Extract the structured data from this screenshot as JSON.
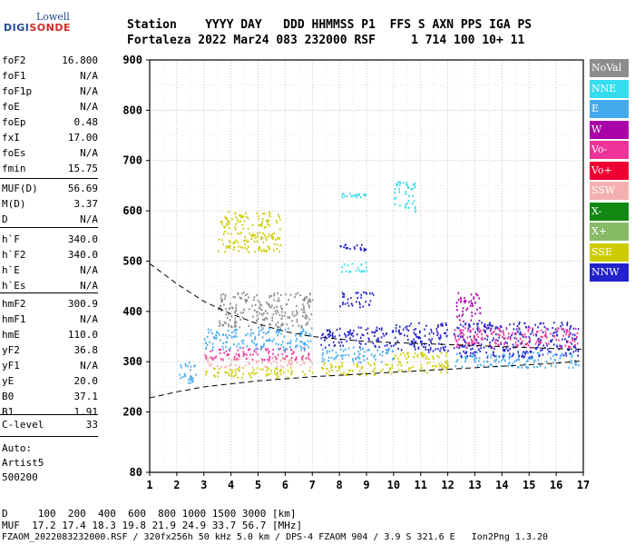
{
  "logo": {
    "line1": "Lowell",
    "line2a": "DIGI",
    "line2b": "SONDE"
  },
  "header": {
    "line1": "Station    YYYY DAY   DDD HHMMSS P1  FFS S AXN PPS IGA PS",
    "line2": "Fortaleza 2022 Mar24 083 232000 RSF     1 714 100 10+ 11"
  },
  "params": [
    {
      "k": "foF2",
      "v": "16.800"
    },
    {
      "k": "foF1",
      "v": "N/A"
    },
    {
      "k": "foF1p",
      "v": "N/A"
    },
    {
      "k": "foE",
      "v": "N/A"
    },
    {
      "k": "foEp",
      "v": "0.48"
    },
    {
      "k": "fxI",
      "v": "17.00"
    },
    {
      "k": "foEs",
      "v": "N/A"
    },
    {
      "k": "fmin",
      "v": "15.75"
    },
    {
      "k": "MUF(D)",
      "v": "56.69"
    },
    {
      "k": "M(D)",
      "v": "3.37"
    },
    {
      "k": "D",
      "v": "N/A"
    },
    {
      "k": "h`F",
      "v": "340.0"
    },
    {
      "k": "h`F2",
      "v": "340.0"
    },
    {
      "k": "h`E",
      "v": "N/A"
    },
    {
      "k": "h`Es",
      "v": "N/A"
    },
    {
      "k": "hmF2",
      "v": "300.9"
    },
    {
      "k": "hmF1",
      "v": "N/A"
    },
    {
      "k": "hmE",
      "v": "110.0"
    },
    {
      "k": "yF2",
      "v": "36.8"
    },
    {
      "k": "yF1",
      "v": "N/A"
    },
    {
      "k": "yE",
      "v": "20.0"
    },
    {
      "k": "B0",
      "v": "37.1"
    },
    {
      "k": "B1",
      "v": "1.91"
    },
    {
      "k": "C-level",
      "v": "33"
    }
  ],
  "notes": [
    "Auto:",
    "Artist5",
    "500200"
  ],
  "legend": [
    {
      "label": "NoVal",
      "color": "#8c8c8c"
    },
    {
      "label": "NNE",
      "color": "#33ddee"
    },
    {
      "label": "E",
      "color": "#44aaee"
    },
    {
      "label": "W",
      "color": "#aa00aa"
    },
    {
      "label": "Vo-",
      "color": "#ee3399"
    },
    {
      "label": "Vo+",
      "color": "#ee0033"
    },
    {
      "label": "SSW",
      "color": "#f4b0b0"
    },
    {
      "label": "X-",
      "color": "#118811"
    },
    {
      "label": "X+",
      "color": "#88bb66"
    },
    {
      "label": "SSE",
      "color": "#cccc00"
    },
    {
      "label": "NNW",
      "color": "#2222cc"
    }
  ],
  "footer": {
    "line1": "D     100  200  400  600  800 1000 1500 3000 [km]",
    "line2": "MUF  17.2 17.4 18.3 19.8 21.9 24.9 33.7 56.7 [MHz]",
    "line3": "FZAOM_2022083232000.RSF / 320fx256h 50 kHz 5.0 km / DPS-4 FZAOM 904 / 3.9 S 321.6 E   Ion2Png 1.3.20"
  },
  "chart_data": {
    "type": "scatter",
    "xlim": [
      1,
      17
    ],
    "ylim": [
      80,
      900
    ],
    "x_ticks": [
      1,
      2,
      3,
      4,
      5,
      6,
      7,
      8,
      9,
      10,
      11,
      12,
      13,
      14,
      15,
      16,
      17
    ],
    "y_ticks": [
      80,
      200,
      300,
      400,
      500,
      600,
      700,
      800,
      900
    ],
    "grid": true,
    "traces": [
      {
        "name": "upper dashed",
        "style": "dashed",
        "points": [
          [
            1,
            495
          ],
          [
            2,
            455
          ],
          [
            3,
            420
          ],
          [
            4,
            395
          ],
          [
            5,
            375
          ],
          [
            6,
            360
          ],
          [
            7,
            350
          ],
          [
            8,
            345
          ],
          [
            9,
            340
          ],
          [
            10,
            338
          ],
          [
            11,
            336
          ],
          [
            12,
            334
          ],
          [
            13,
            332
          ],
          [
            14,
            330
          ],
          [
            15,
            328
          ],
          [
            16,
            326
          ],
          [
            17,
            325
          ]
        ]
      },
      {
        "name": "lower dashed",
        "style": "dashed",
        "points": [
          [
            1,
            228
          ],
          [
            2,
            240
          ],
          [
            3,
            250
          ],
          [
            4,
            256
          ],
          [
            5,
            262
          ],
          [
            6,
            266
          ],
          [
            7,
            270
          ],
          [
            8,
            273
          ],
          [
            9,
            276
          ],
          [
            10,
            279
          ],
          [
            11,
            282
          ],
          [
            12,
            285
          ],
          [
            13,
            288
          ],
          [
            14,
            291
          ],
          [
            15,
            294
          ],
          [
            16,
            297
          ],
          [
            17,
            302
          ]
        ]
      }
    ],
    "echo_clusters": [
      {
        "x": [
          2.0,
          2.7
        ],
        "y": [
          255,
          300
        ],
        "color": "E"
      },
      {
        "x": [
          3.0,
          7.0
        ],
        "y": [
          270,
          290
        ],
        "color": "SSE"
      },
      {
        "x": [
          3.0,
          7.0
        ],
        "y": [
          290,
          310
        ],
        "color": "SSW"
      },
      {
        "x": [
          3.0,
          7.0
        ],
        "y": [
          305,
          330
        ],
        "color": "Vo-"
      },
      {
        "x": [
          3.0,
          7.0
        ],
        "y": [
          325,
          370
        ],
        "color": "E"
      },
      {
        "x": [
          3.5,
          7.0
        ],
        "y": [
          370,
          440
        ],
        "color": "NoVal"
      },
      {
        "x": [
          3.5,
          5.8
        ],
        "y": [
          520,
          600
        ],
        "color": "SSE"
      },
      {
        "x": [
          7.3,
          10.0
        ],
        "y": [
          275,
          300
        ],
        "color": "SSE"
      },
      {
        "x": [
          7.3,
          10.0
        ],
        "y": [
          300,
          330
        ],
        "color": "E"
      },
      {
        "x": [
          7.3,
          10.0
        ],
        "y": [
          330,
          370
        ],
        "color": "NNW"
      },
      {
        "x": [
          8.0,
          9.3
        ],
        "y": [
          410,
          440
        ],
        "color": "NNW"
      },
      {
        "x": [
          8.0,
          9.0
        ],
        "y": [
          520,
          535
        ],
        "color": "NNW"
      },
      {
        "x": [
          8.0,
          9.0
        ],
        "y": [
          480,
          500
        ],
        "color": "NNE"
      },
      {
        "x": [
          8.0,
          9.0
        ],
        "y": [
          628,
          636
        ],
        "color": "NNE"
      },
      {
        "x": [
          10.0,
          12.0
        ],
        "y": [
          280,
          320
        ],
        "color": "SSE"
      },
      {
        "x": [
          10.0,
          12.0
        ],
        "y": [
          320,
          380
        ],
        "color": "NNW"
      },
      {
        "x": [
          10.0,
          10.8
        ],
        "y": [
          600,
          660
        ],
        "color": "NNE"
      },
      {
        "x": [
          12.2,
          16.8
        ],
        "y": [
          290,
          320
        ],
        "color": "E"
      },
      {
        "x": [
          12.2,
          16.8
        ],
        "y": [
          310,
          380
        ],
        "color": "NNW"
      },
      {
        "x": [
          12.2,
          16.8
        ],
        "y": [
          330,
          370
        ],
        "color": "Vo-"
      },
      {
        "x": [
          12.3,
          13.2
        ],
        "y": [
          380,
          440
        ],
        "color": "W"
      }
    ]
  }
}
